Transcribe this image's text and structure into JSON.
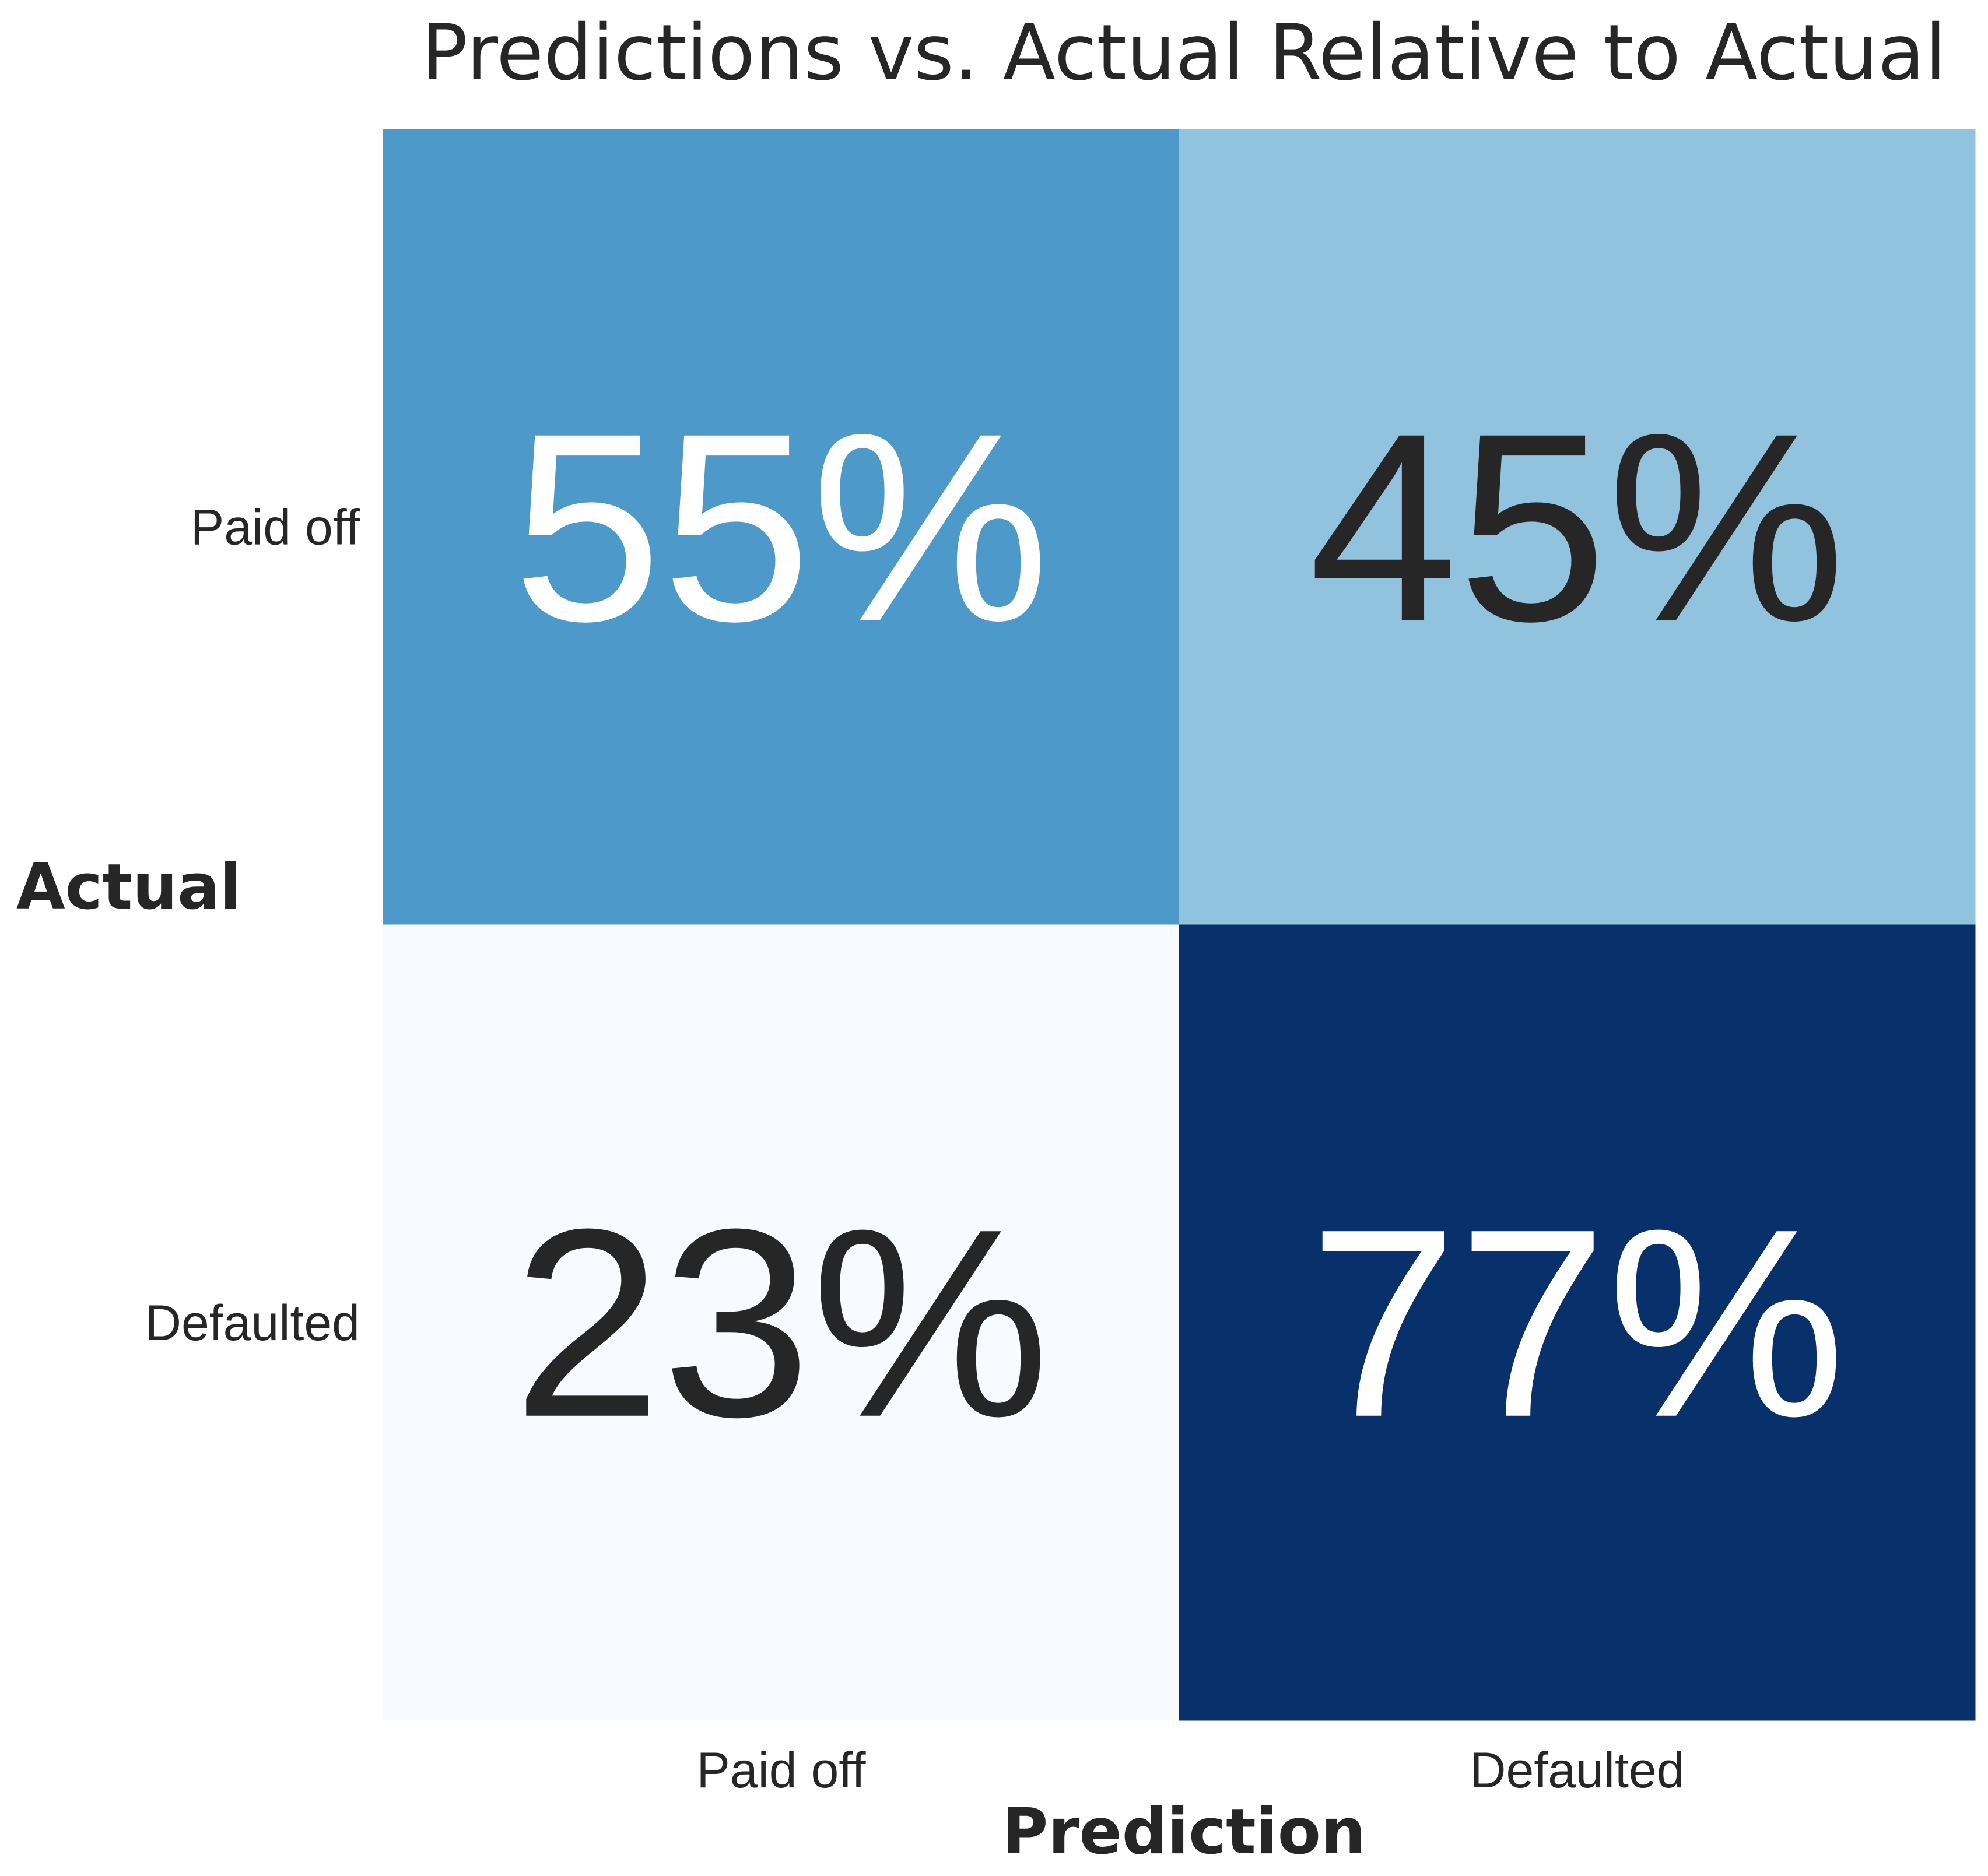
{
  "chart_data": {
    "type": "heatmap",
    "title": "Predictions vs. Actual Relative to Actual",
    "xlabel": "Prediction",
    "ylabel": "Actual",
    "x_categories": [
      "Paid off",
      "Defaulted"
    ],
    "y_categories": [
      "Paid off",
      "Defaulted"
    ],
    "values": [
      [
        55,
        45
      ],
      [
        23,
        77
      ]
    ],
    "cell_labels": [
      [
        "55%",
        "45%"
      ],
      [
        "23%",
        "77%"
      ]
    ],
    "colormap": "Blues",
    "colors": {
      "low": "#f7fbff",
      "high": "#08306b",
      "label_dark": "#262626",
      "label_light": "#ffffff"
    },
    "colorbar": false,
    "grid": false
  }
}
